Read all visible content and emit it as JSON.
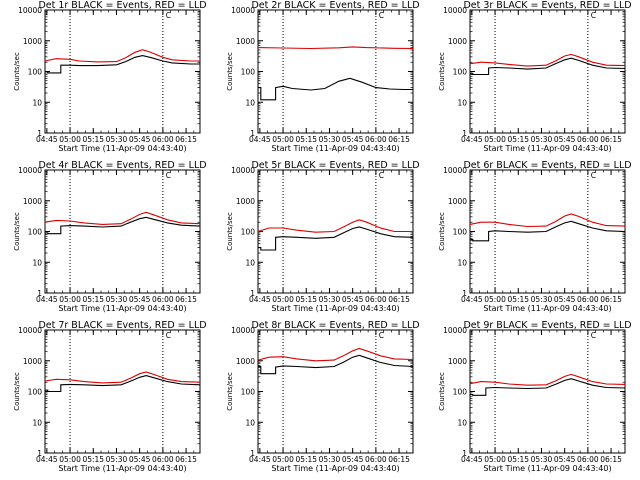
{
  "figure": {
    "xticks": [
      "04:45",
      "05:00",
      "05:15",
      "05:30",
      "05:45",
      "06:00",
      "06:15"
    ],
    "xtick_hours": [
      4.75,
      5.0,
      5.25,
      5.5,
      5.75,
      6.0,
      6.25
    ],
    "yticks": [
      "1",
      "10",
      "100",
      "1000",
      "10000"
    ],
    "yticks_panel2": [
      "1",
      "10",
      "100",
      "1000",
      "10000"
    ],
    "colors": {
      "events": "#000000",
      "lld": "#dd0000",
      "axes": "#000000"
    },
    "marker_label": "C"
  },
  "chart_data": [
    {
      "type": "line",
      "title": "Det 1r BLACK = Events, RED = LLD",
      "xlabel": "Start Time (11-Apr-09 04:43:40)",
      "ylabel": "Counts/sec",
      "yscale": "log",
      "ylim": [
        1,
        10000
      ],
      "xlim": [
        4.73,
        6.4
      ],
      "vlines": [
        5.0,
        6.0
      ],
      "marker_x": 6.02,
      "series": [
        {
          "name": "Events",
          "color": "#000000",
          "x": [
            4.73,
            4.76,
            4.76,
            4.9,
            4.9,
            5.0,
            5.1,
            5.3,
            5.5,
            5.6,
            5.7,
            5.78,
            5.86,
            6.0,
            6.1,
            6.3,
            6.4
          ],
          "y": [
            100,
            100,
            90,
            90,
            160,
            160,
            155,
            155,
            165,
            210,
            290,
            330,
            290,
            220,
            190,
            175,
            175
          ]
        },
        {
          "name": "LLD",
          "color": "#dd0000",
          "x": [
            4.73,
            4.85,
            5.0,
            5.1,
            5.3,
            5.5,
            5.6,
            5.7,
            5.78,
            5.86,
            6.0,
            6.1,
            6.3,
            6.4
          ],
          "y": [
            220,
            260,
            250,
            220,
            205,
            210,
            280,
            420,
            510,
            430,
            290,
            240,
            220,
            220
          ]
        }
      ]
    },
    {
      "type": "line",
      "title": "Det 2r BLACK = Events, RED = LLD",
      "xlabel": "Start Time (11-Apr-09 04:43:40)",
      "ylabel": "Counts/sec",
      "yscale": "log",
      "ylim": [
        1,
        10000
      ],
      "xlim": [
        4.73,
        6.4
      ],
      "vlines": [
        5.0,
        6.0
      ],
      "marker_x": 6.02,
      "series": [
        {
          "name": "Events",
          "color": "#000000",
          "x": [
            4.73,
            4.76,
            4.76,
            4.92,
            4.92,
            5.0,
            5.1,
            5.3,
            5.45,
            5.6,
            5.72,
            5.85,
            6.0,
            6.15,
            6.3,
            6.4
          ],
          "y": [
            30,
            30,
            12,
            12,
            30,
            33,
            28,
            25,
            28,
            48,
            60,
            45,
            30,
            27,
            26,
            26
          ]
        },
        {
          "name": "LLD",
          "color": "#dd0000",
          "x": [
            4.73,
            5.0,
            5.3,
            5.6,
            5.75,
            5.9,
            6.2,
            6.4
          ],
          "y": [
            600,
            580,
            560,
            590,
            630,
            600,
            570,
            560
          ]
        }
      ]
    },
    {
      "type": "line",
      "title": "Det 3r BLACK = Events, RED = LLD",
      "xlabel": "Start Time (11-Apr-09 04:43:40)",
      "ylabel": "Counts/sec",
      "yscale": "log",
      "ylim": [
        1,
        10000
      ],
      "xlim": [
        4.73,
        6.4
      ],
      "vlines": [
        5.0,
        6.0
      ],
      "marker_x": 6.02,
      "series": [
        {
          "name": "Events",
          "color": "#000000",
          "x": [
            4.73,
            4.76,
            4.76,
            4.93,
            4.93,
            5.0,
            5.15,
            5.35,
            5.55,
            5.65,
            5.75,
            5.82,
            5.9,
            6.05,
            6.2,
            6.4
          ],
          "y": [
            85,
            85,
            80,
            80,
            130,
            135,
            130,
            120,
            130,
            180,
            240,
            270,
            230,
            160,
            130,
            125
          ]
        },
        {
          "name": "LLD",
          "color": "#dd0000",
          "x": [
            4.73,
            4.85,
            5.0,
            5.15,
            5.35,
            5.55,
            5.65,
            5.75,
            5.82,
            5.9,
            6.05,
            6.2,
            6.4
          ],
          "y": [
            180,
            200,
            190,
            170,
            150,
            160,
            220,
            320,
            360,
            300,
            200,
            160,
            155
          ]
        }
      ]
    },
    {
      "type": "line",
      "title": "Det 4r BLACK = Events, RED = LLD",
      "xlabel": "Start Time (11-Apr-09 04:43:40)",
      "ylabel": "Counts/sec",
      "yscale": "log",
      "ylim": [
        1,
        10000
      ],
      "xlim": [
        4.73,
        6.4
      ],
      "vlines": [
        5.0,
        6.0
      ],
      "marker_x": 6.02,
      "series": [
        {
          "name": "Events",
          "color": "#000000",
          "x": [
            4.73,
            4.76,
            4.76,
            4.9,
            4.9,
            5.0,
            5.15,
            5.35,
            5.55,
            5.65,
            5.75,
            5.82,
            5.9,
            6.05,
            6.2,
            6.4
          ],
          "y": [
            90,
            90,
            85,
            85,
            150,
            155,
            150,
            140,
            150,
            200,
            260,
            290,
            250,
            190,
            160,
            150
          ]
        },
        {
          "name": "LLD",
          "color": "#dd0000",
          "x": [
            4.73,
            4.85,
            5.0,
            5.15,
            5.35,
            5.55,
            5.65,
            5.75,
            5.82,
            5.9,
            6.05,
            6.2,
            6.4
          ],
          "y": [
            200,
            230,
            220,
            190,
            170,
            180,
            250,
            360,
            420,
            350,
            240,
            190,
            180
          ]
        }
      ]
    },
    {
      "type": "line",
      "title": "Det 5r BLACK = Events, RED = LLD",
      "xlabel": "Start Time (11-Apr-09 04:43:40)",
      "ylabel": "Counts/sec",
      "yscale": "log",
      "ylim": [
        1,
        10000
      ],
      "xlim": [
        4.73,
        6.4
      ],
      "vlines": [
        5.0,
        6.0
      ],
      "marker_x": 6.02,
      "series": [
        {
          "name": "Events",
          "color": "#000000",
          "x": [
            4.73,
            4.76,
            4.76,
            4.92,
            4.92,
            5.0,
            5.15,
            5.35,
            5.55,
            5.65,
            5.75,
            5.82,
            5.9,
            6.05,
            6.2,
            6.4
          ],
          "y": [
            30,
            30,
            25,
            25,
            65,
            68,
            65,
            60,
            65,
            90,
            125,
            140,
            120,
            85,
            68,
            65
          ]
        },
        {
          "name": "LLD",
          "color": "#dd0000",
          "x": [
            4.73,
            4.85,
            5.0,
            5.15,
            5.35,
            5.55,
            5.65,
            5.75,
            5.82,
            5.9,
            6.05,
            6.2,
            6.4
          ],
          "y": [
            100,
            130,
            130,
            110,
            95,
            100,
            140,
            200,
            240,
            200,
            130,
            100,
            100
          ]
        }
      ]
    },
    {
      "type": "line",
      "title": "Det 6r BLACK = Events, RED = LLD",
      "xlabel": "Start Time (11-Apr-09 04:43:40)",
      "ylabel": "Counts/sec",
      "yscale": "log",
      "ylim": [
        1,
        10000
      ],
      "xlim": [
        4.73,
        6.4
      ],
      "vlines": [
        5.0,
        6.0
      ],
      "marker_x": 6.02,
      "series": [
        {
          "name": "Events",
          "color": "#000000",
          "x": [
            4.73,
            4.76,
            4.76,
            4.93,
            4.93,
            5.0,
            5.15,
            5.35,
            5.55,
            5.65,
            5.75,
            5.82,
            5.9,
            6.05,
            6.2,
            6.4
          ],
          "y": [
            55,
            55,
            50,
            50,
            100,
            105,
            100,
            95,
            100,
            140,
            190,
            215,
            180,
            130,
            105,
            100
          ]
        },
        {
          "name": "LLD",
          "color": "#dd0000",
          "x": [
            4.73,
            4.85,
            5.0,
            5.15,
            5.35,
            5.55,
            5.65,
            5.75,
            5.82,
            5.9,
            6.05,
            6.2,
            6.4
          ],
          "y": [
            170,
            200,
            200,
            170,
            145,
            150,
            210,
            320,
            370,
            310,
            200,
            155,
            150
          ]
        }
      ]
    },
    {
      "type": "line",
      "title": "Det 7r BLACK = Events, RED = LLD",
      "xlabel": "Start Time (11-Apr-09 04:43:40)",
      "ylabel": "Counts/sec",
      "yscale": "log",
      "ylim": [
        1,
        10000
      ],
      "xlim": [
        4.73,
        6.4
      ],
      "vlines": [
        5.0,
        6.0
      ],
      "marker_x": 6.02,
      "series": [
        {
          "name": "Events",
          "color": "#000000",
          "x": [
            4.73,
            4.76,
            4.76,
            4.9,
            4.9,
            5.0,
            5.15,
            5.35,
            5.55,
            5.65,
            5.75,
            5.82,
            5.9,
            6.05,
            6.2,
            6.4
          ],
          "y": [
            110,
            110,
            100,
            100,
            165,
            170,
            165,
            155,
            165,
            215,
            290,
            330,
            280,
            210,
            175,
            165
          ]
        },
        {
          "name": "LLD",
          "color": "#dd0000",
          "x": [
            4.73,
            4.85,
            5.0,
            5.15,
            5.35,
            5.55,
            5.65,
            5.75,
            5.82,
            5.9,
            6.05,
            6.2,
            6.4
          ],
          "y": [
            220,
            250,
            240,
            210,
            190,
            200,
            270,
            380,
            430,
            360,
            250,
            210,
            200
          ]
        }
      ]
    },
    {
      "type": "line",
      "title": "Det 8r BLACK = Events, RED = LLD",
      "xlabel": "Start Time (11-Apr-09 04:43:40)",
      "ylabel": "Counts/sec",
      "yscale": "log",
      "ylim": [
        1,
        10000
      ],
      "xlim": [
        4.73,
        6.4
      ],
      "vlines": [
        5.0,
        6.0
      ],
      "marker_x": 6.02,
      "series": [
        {
          "name": "Events",
          "color": "#000000",
          "x": [
            4.73,
            4.76,
            4.76,
            4.92,
            4.92,
            5.0,
            5.15,
            5.35,
            5.55,
            5.65,
            5.75,
            5.82,
            5.9,
            6.05,
            6.2,
            6.4
          ],
          "y": [
            650,
            650,
            380,
            380,
            620,
            680,
            650,
            600,
            650,
            900,
            1300,
            1500,
            1250,
            880,
            700,
            650
          ]
        },
        {
          "name": "LLD",
          "color": "#dd0000",
          "x": [
            4.73,
            4.85,
            5.0,
            5.15,
            5.35,
            5.55,
            5.65,
            5.75,
            5.82,
            5.9,
            6.05,
            6.2,
            6.4
          ],
          "y": [
            1050,
            1300,
            1350,
            1150,
            1000,
            1050,
            1450,
            2100,
            2500,
            2100,
            1450,
            1150,
            1100
          ]
        }
      ]
    },
    {
      "type": "line",
      "title": "Det 9r BLACK = Events, RED = LLD",
      "xlabel": "Start Time (11-Apr-09 04:43:40)",
      "ylabel": "Counts/sec",
      "yscale": "log",
      "ylim": [
        1,
        10000
      ],
      "xlim": [
        4.73,
        6.4
      ],
      "vlines": [
        5.0,
        6.0
      ],
      "marker_x": 6.02,
      "series": [
        {
          "name": "Events",
          "color": "#000000",
          "x": [
            4.73,
            4.76,
            4.76,
            4.9,
            4.9,
            5.0,
            5.15,
            5.35,
            5.55,
            5.65,
            5.75,
            5.82,
            5.9,
            6.05,
            6.2,
            6.4
          ],
          "y": [
            80,
            80,
            75,
            75,
            130,
            135,
            130,
            125,
            130,
            170,
            230,
            260,
            220,
            160,
            135,
            130
          ]
        },
        {
          "name": "LLD",
          "color": "#dd0000",
          "x": [
            4.73,
            4.85,
            5.0,
            5.15,
            5.35,
            5.55,
            5.65,
            5.75,
            5.82,
            5.9,
            6.05,
            6.2,
            6.4
          ],
          "y": [
            180,
            210,
            200,
            175,
            160,
            165,
            220,
            310,
            360,
            300,
            210,
            175,
            170
          ]
        }
      ]
    }
  ]
}
